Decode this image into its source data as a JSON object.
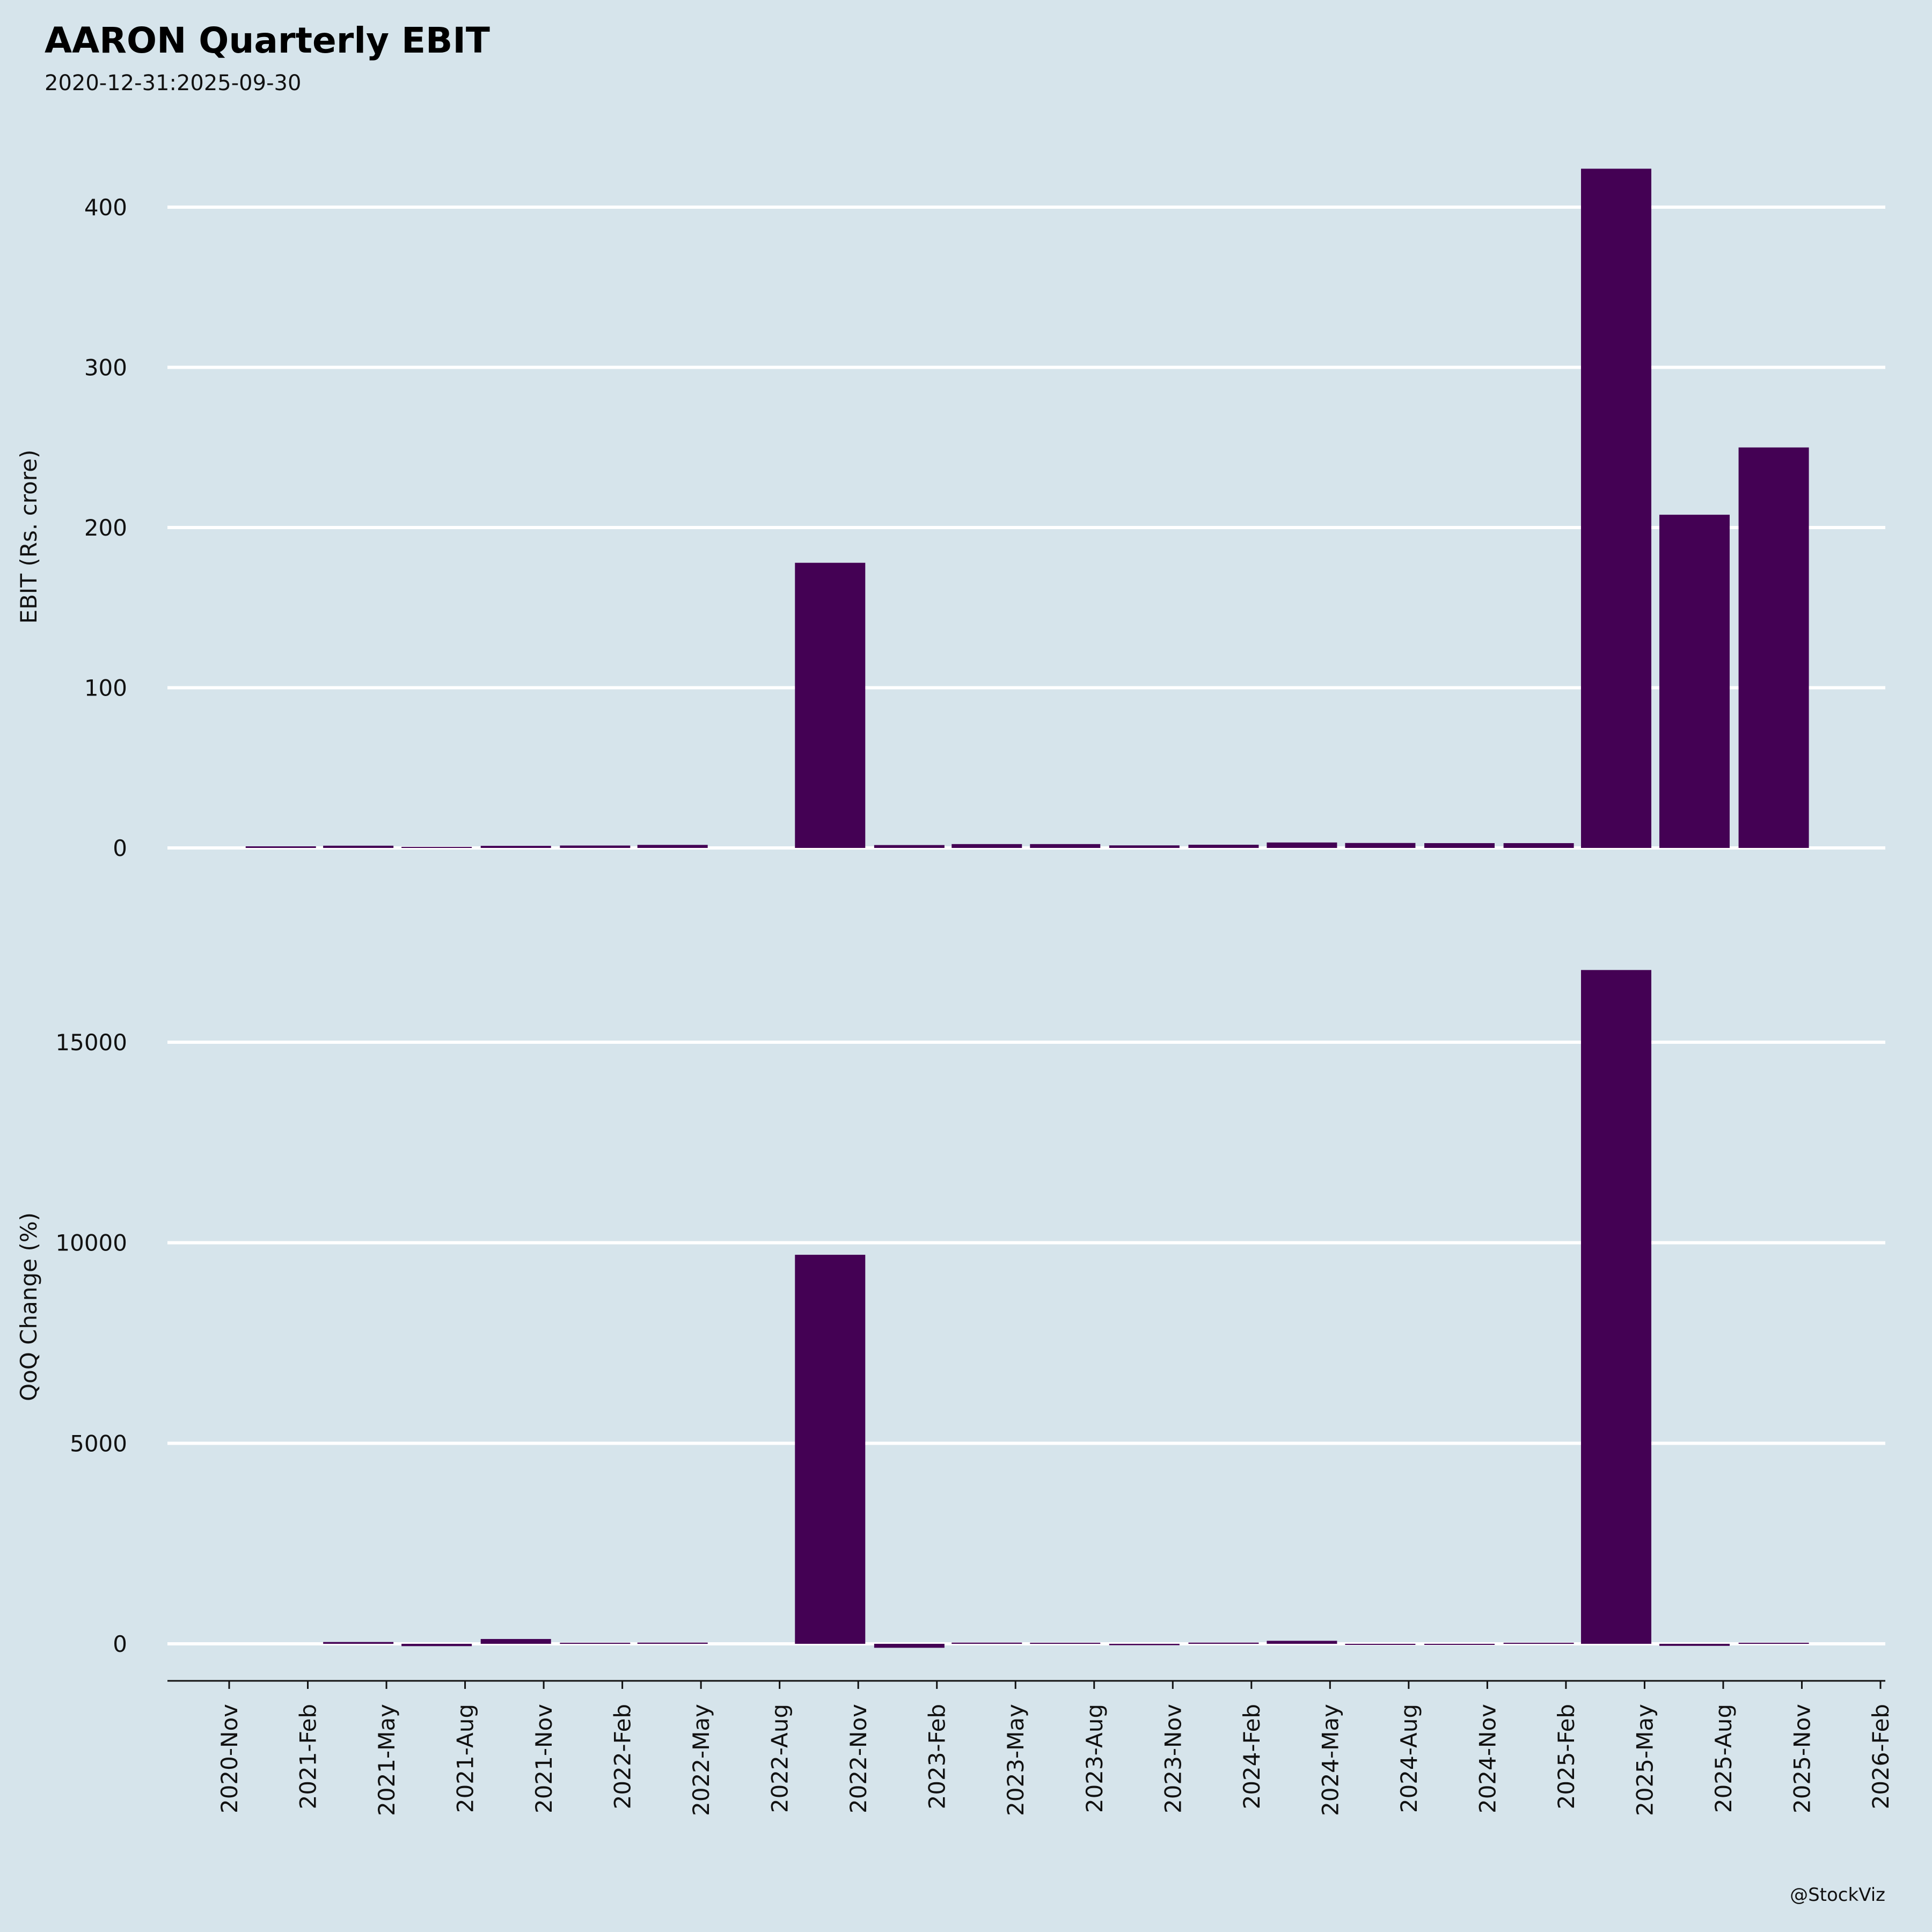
{
  "title": "AARON Quarterly EBIT",
  "subtitle": "2020-12-31:2025-09-30",
  "watermark": "@StockViz",
  "colors": {
    "background": "#d6e4eb",
    "bar": "#440154",
    "grid": "#ffffff"
  },
  "chart_data": [
    {
      "type": "bar",
      "ylabel": "EBIT (Rs. crore)",
      "ylim": [
        0,
        430
      ],
      "yticks": [
        0,
        100,
        200,
        300,
        400
      ],
      "grid": true,
      "x": [
        "2020-12-31",
        "2021-03-31",
        "2021-06-30",
        "2021-09-30",
        "2021-12-31",
        "2022-03-31",
        "2022-06-30",
        "2022-09-30",
        "2022-12-31",
        "2023-03-31",
        "2023-06-30",
        "2023-09-30",
        "2023-12-31",
        "2024-03-31",
        "2024-06-30",
        "2024-09-30",
        "2024-12-31",
        "2025-03-31",
        "2025-06-30",
        "2025-09-30"
      ],
      "values": [
        1.0,
        1.4,
        0.6,
        1.3,
        1.5,
        1.9,
        null,
        178,
        1.8,
        2.4,
        2.4,
        1.6,
        2.0,
        3.4,
        3.1,
        3.0,
        3.0,
        424,
        208,
        250
      ]
    },
    {
      "type": "bar",
      "ylabel": "QoQ Change (%)",
      "ylim": [
        -200,
        17000
      ],
      "yticks": [
        0,
        5000,
        10000,
        15000
      ],
      "grid": true,
      "x": [
        "2020-12-31",
        "2021-03-31",
        "2021-06-30",
        "2021-09-30",
        "2021-12-31",
        "2022-03-31",
        "2022-06-30",
        "2022-09-30",
        "2022-12-31",
        "2023-03-31",
        "2023-06-30",
        "2023-09-30",
        "2023-12-31",
        "2024-03-31",
        "2024-06-30",
        "2024-09-30",
        "2024-12-31",
        "2025-03-31",
        "2025-06-30",
        "2025-09-30"
      ],
      "values": [
        null,
        45,
        -58,
        120,
        18,
        30,
        null,
        9700,
        -99,
        30,
        0,
        -35,
        30,
        75,
        -8,
        -2,
        0,
        16800,
        -51,
        20
      ],
      "xticks": [
        "2020-Nov",
        "2021-Feb",
        "2021-May",
        "2021-Aug",
        "2021-Nov",
        "2022-Feb",
        "2022-May",
        "2022-Aug",
        "2022-Nov",
        "2023-Feb",
        "2023-May",
        "2023-Aug",
        "2023-Nov",
        "2024-Feb",
        "2024-May",
        "2024-Aug",
        "2024-Nov",
        "2025-Feb",
        "2025-May",
        "2025-Aug",
        "2025-Nov",
        "2026-Feb"
      ]
    }
  ]
}
